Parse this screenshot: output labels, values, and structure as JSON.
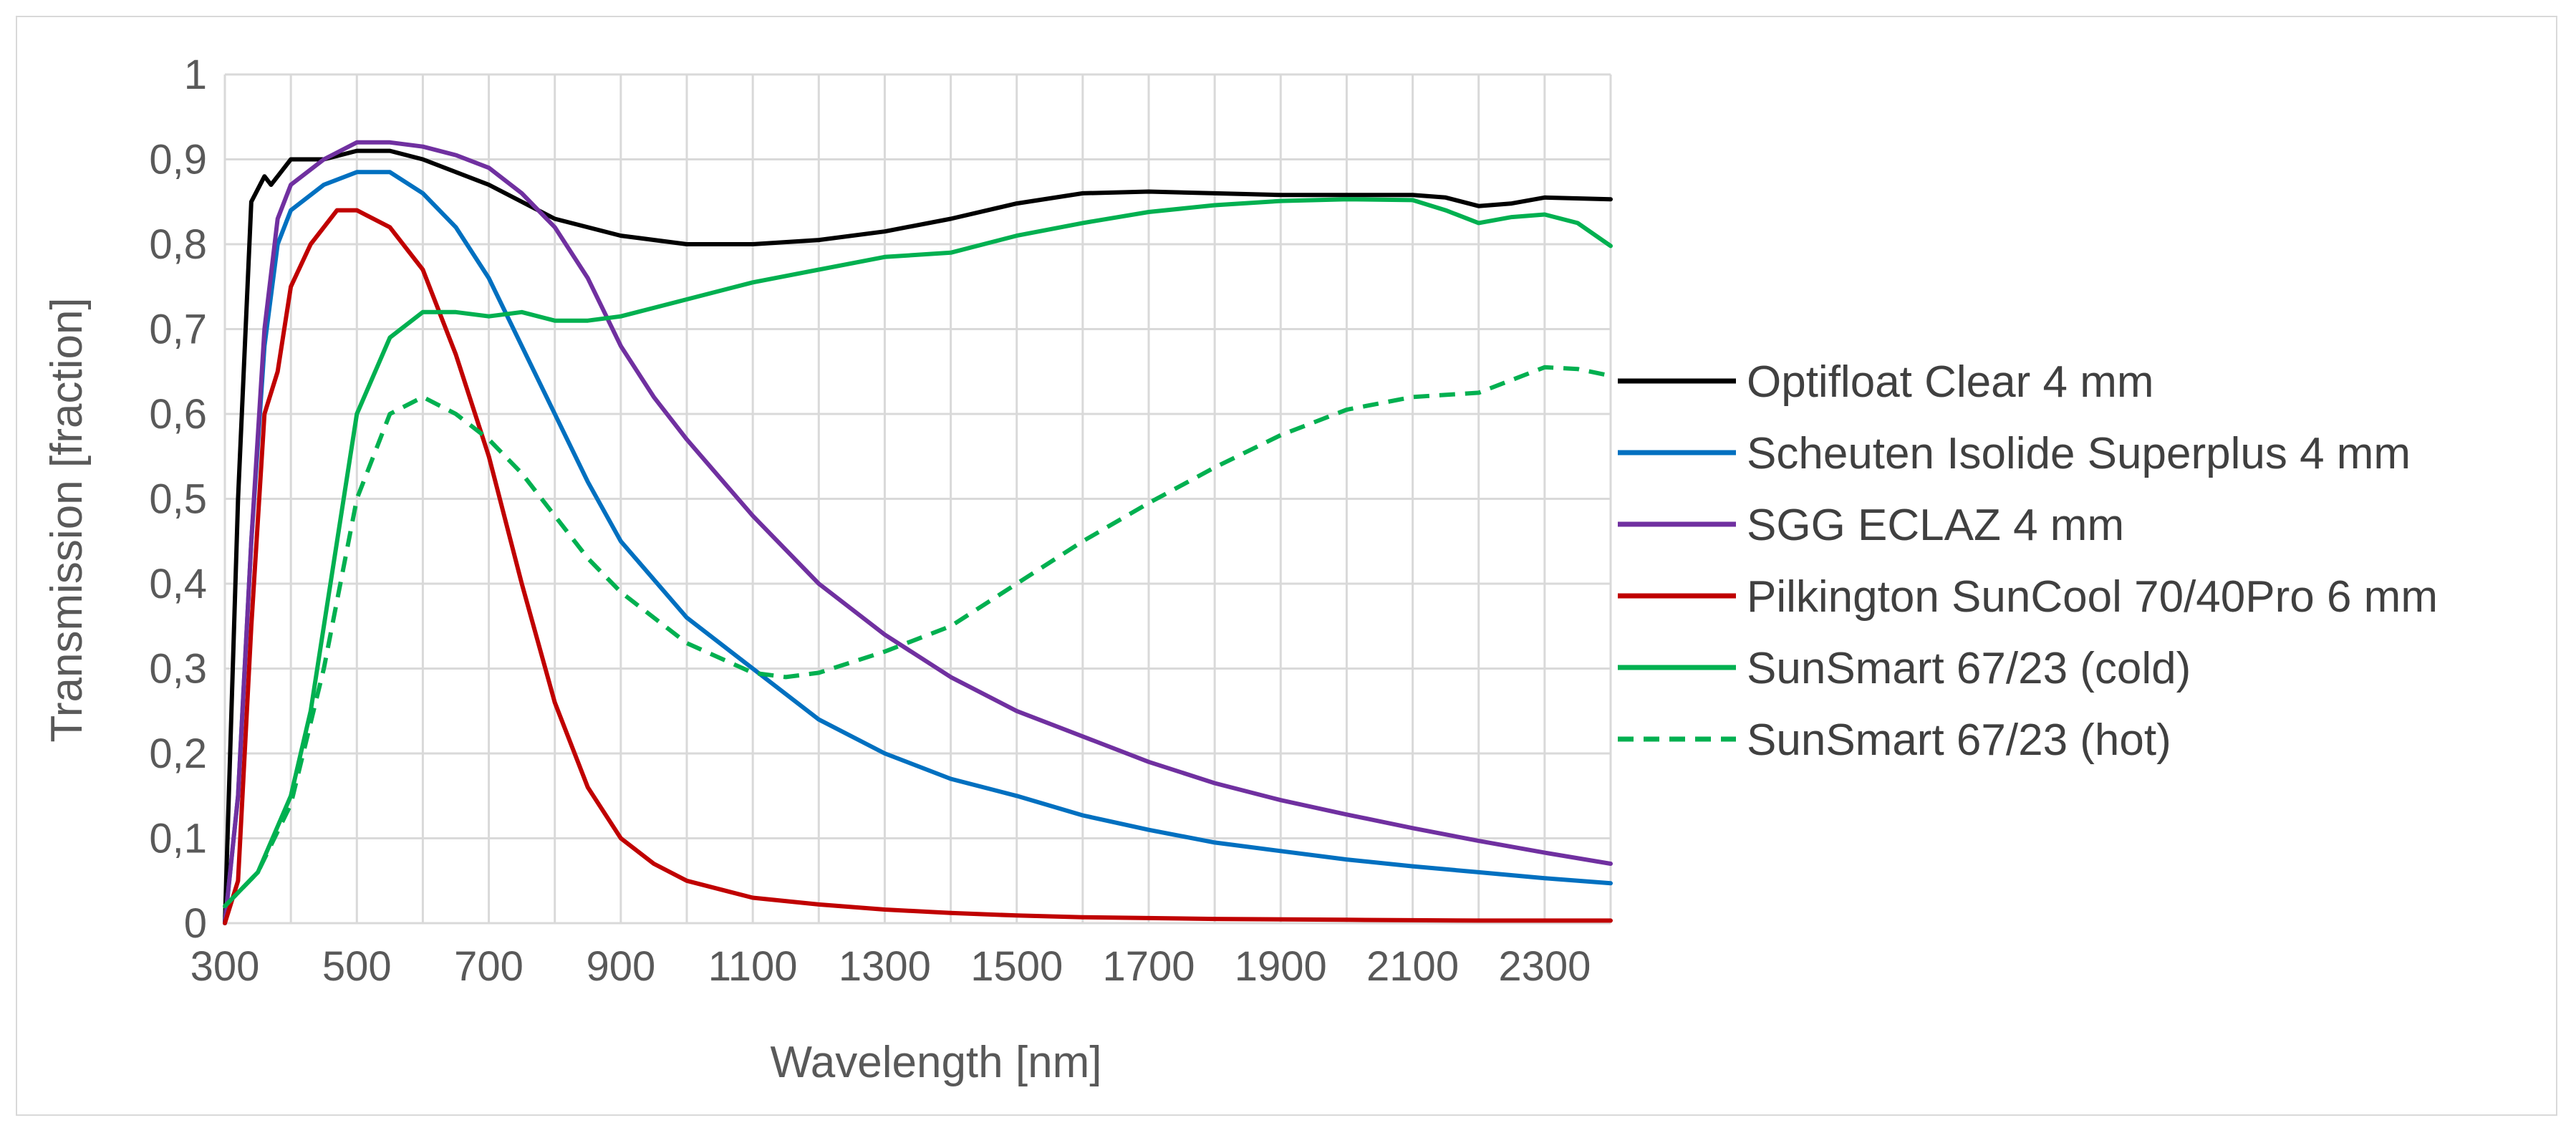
{
  "chart_data": {
    "type": "line",
    "title": "",
    "xlabel": "Wavelength [nm]",
    "ylabel": "Transmission [fraction]",
    "xlim": [
      300,
      2400
    ],
    "ylim": [
      0,
      1
    ],
    "grid": true,
    "legend_position": "right",
    "x_ticks": [
      300,
      500,
      700,
      900,
      1100,
      1300,
      1500,
      1700,
      1900,
      2100,
      2300
    ],
    "x_tick_labels": [
      "300",
      "500",
      "700",
      "900",
      "1100",
      "1300",
      "1500",
      "1700",
      "1900",
      "2100",
      "2300"
    ],
    "x_gridlines": [
      300,
      400,
      500,
      600,
      700,
      800,
      900,
      1000,
      1100,
      1200,
      1300,
      1400,
      1500,
      1600,
      1700,
      1800,
      1900,
      2000,
      2100,
      2200,
      2300,
      2400
    ],
    "y_ticks": [
      0,
      0.1,
      0.2,
      0.3,
      0.4,
      0.5,
      0.6,
      0.7,
      0.8,
      0.9,
      1
    ],
    "y_tick_labels": [
      "0",
      "0,1",
      "0,2",
      "0,3",
      "0,4",
      "0,5",
      "0,6",
      "0,7",
      "0,8",
      "0,9",
      "1"
    ],
    "series": [
      {
        "name": "Optifloat Clear 4 mm",
        "color": "#000000",
        "dash": "solid",
        "x": [
          300,
          320,
          340,
          360,
          370,
          380,
          400,
          450,
          500,
          550,
          600,
          700,
          800,
          900,
          1000,
          1100,
          1200,
          1300,
          1400,
          1500,
          1600,
          1700,
          1800,
          1900,
          2000,
          2100,
          2150,
          2200,
          2250,
          2300,
          2400
        ],
        "y": [
          0.0,
          0.5,
          0.85,
          0.88,
          0.87,
          0.88,
          0.9,
          0.9,
          0.91,
          0.91,
          0.9,
          0.87,
          0.83,
          0.81,
          0.8,
          0.8,
          0.805,
          0.815,
          0.83,
          0.848,
          0.86,
          0.862,
          0.86,
          0.858,
          0.858,
          0.858,
          0.855,
          0.845,
          0.848,
          0.855,
          0.853
        ]
      },
      {
        "name": "Scheuten Isolide Superplus 4 mm",
        "color": "#0070c0",
        "dash": "solid",
        "x": [
          300,
          320,
          340,
          360,
          380,
          400,
          450,
          500,
          550,
          600,
          650,
          700,
          750,
          800,
          850,
          900,
          1000,
          1100,
          1200,
          1300,
          1400,
          1500,
          1600,
          1700,
          1800,
          1900,
          2000,
          2100,
          2200,
          2300,
          2400
        ],
        "y": [
          0.0,
          0.15,
          0.45,
          0.68,
          0.8,
          0.84,
          0.87,
          0.885,
          0.885,
          0.86,
          0.82,
          0.76,
          0.68,
          0.6,
          0.52,
          0.45,
          0.36,
          0.3,
          0.24,
          0.2,
          0.17,
          0.15,
          0.127,
          0.11,
          0.095,
          0.085,
          0.075,
          0.067,
          0.06,
          0.053,
          0.047
        ]
      },
      {
        "name": "SGG ECLAZ 4 mm",
        "color": "#7030a0",
        "dash": "solid",
        "x": [
          300,
          320,
          340,
          360,
          380,
          400,
          450,
          500,
          550,
          600,
          650,
          700,
          750,
          800,
          850,
          900,
          950,
          1000,
          1100,
          1200,
          1300,
          1400,
          1500,
          1600,
          1700,
          1800,
          1900,
          2000,
          2100,
          2200,
          2300,
          2400
        ],
        "y": [
          0.0,
          0.15,
          0.45,
          0.7,
          0.83,
          0.87,
          0.9,
          0.92,
          0.92,
          0.915,
          0.905,
          0.89,
          0.86,
          0.82,
          0.76,
          0.68,
          0.62,
          0.57,
          0.48,
          0.4,
          0.34,
          0.29,
          0.25,
          0.22,
          0.19,
          0.165,
          0.145,
          0.128,
          0.112,
          0.097,
          0.083,
          0.07
        ]
      },
      {
        "name": "Pilkington SunCool 70/40Pro 6 mm",
        "color": "#c00000",
        "dash": "solid",
        "x": [
          300,
          320,
          340,
          360,
          380,
          400,
          430,
          470,
          500,
          550,
          600,
          650,
          700,
          750,
          800,
          850,
          900,
          950,
          1000,
          1100,
          1200,
          1300,
          1400,
          1500,
          1600,
          1800,
          2000,
          2200,
          2400
        ],
        "y": [
          0.0,
          0.05,
          0.35,
          0.6,
          0.65,
          0.75,
          0.8,
          0.84,
          0.84,
          0.82,
          0.77,
          0.67,
          0.55,
          0.4,
          0.26,
          0.16,
          0.1,
          0.07,
          0.05,
          0.03,
          0.022,
          0.016,
          0.012,
          0.009,
          0.007,
          0.005,
          0.004,
          0.003,
          0.003
        ]
      },
      {
        "name": "SunSmart 67/23 (cold)",
        "color": "#00b050",
        "dash": "solid",
        "x": [
          300,
          350,
          400,
          430,
          450,
          500,
          550,
          600,
          650,
          700,
          750,
          800,
          850,
          900,
          950,
          1000,
          1100,
          1200,
          1300,
          1400,
          1500,
          1600,
          1700,
          1800,
          1900,
          2000,
          2100,
          2150,
          2200,
          2250,
          2300,
          2350,
          2400
        ],
        "y": [
          0.02,
          0.06,
          0.15,
          0.25,
          0.35,
          0.6,
          0.69,
          0.72,
          0.72,
          0.715,
          0.72,
          0.71,
          0.71,
          0.715,
          0.725,
          0.735,
          0.755,
          0.77,
          0.785,
          0.79,
          0.81,
          0.825,
          0.838,
          0.846,
          0.851,
          0.853,
          0.852,
          0.84,
          0.825,
          0.832,
          0.835,
          0.825,
          0.798
        ]
      },
      {
        "name": "SunSmart 67/23 (hot)",
        "color": "#00b050",
        "dash": "dashed",
        "x": [
          300,
          350,
          400,
          450,
          500,
          550,
          600,
          650,
          700,
          750,
          800,
          850,
          900,
          1000,
          1100,
          1150,
          1200,
          1300,
          1400,
          1500,
          1600,
          1700,
          1800,
          1900,
          2000,
          2100,
          2200,
          2250,
          2300,
          2350,
          2400
        ],
        "y": [
          0.02,
          0.06,
          0.14,
          0.3,
          0.5,
          0.6,
          0.62,
          0.6,
          0.57,
          0.53,
          0.48,
          0.43,
          0.39,
          0.33,
          0.295,
          0.29,
          0.295,
          0.32,
          0.35,
          0.4,
          0.45,
          0.495,
          0.537,
          0.575,
          0.605,
          0.62,
          0.625,
          0.64,
          0.655,
          0.653,
          0.645
        ]
      }
    ]
  }
}
